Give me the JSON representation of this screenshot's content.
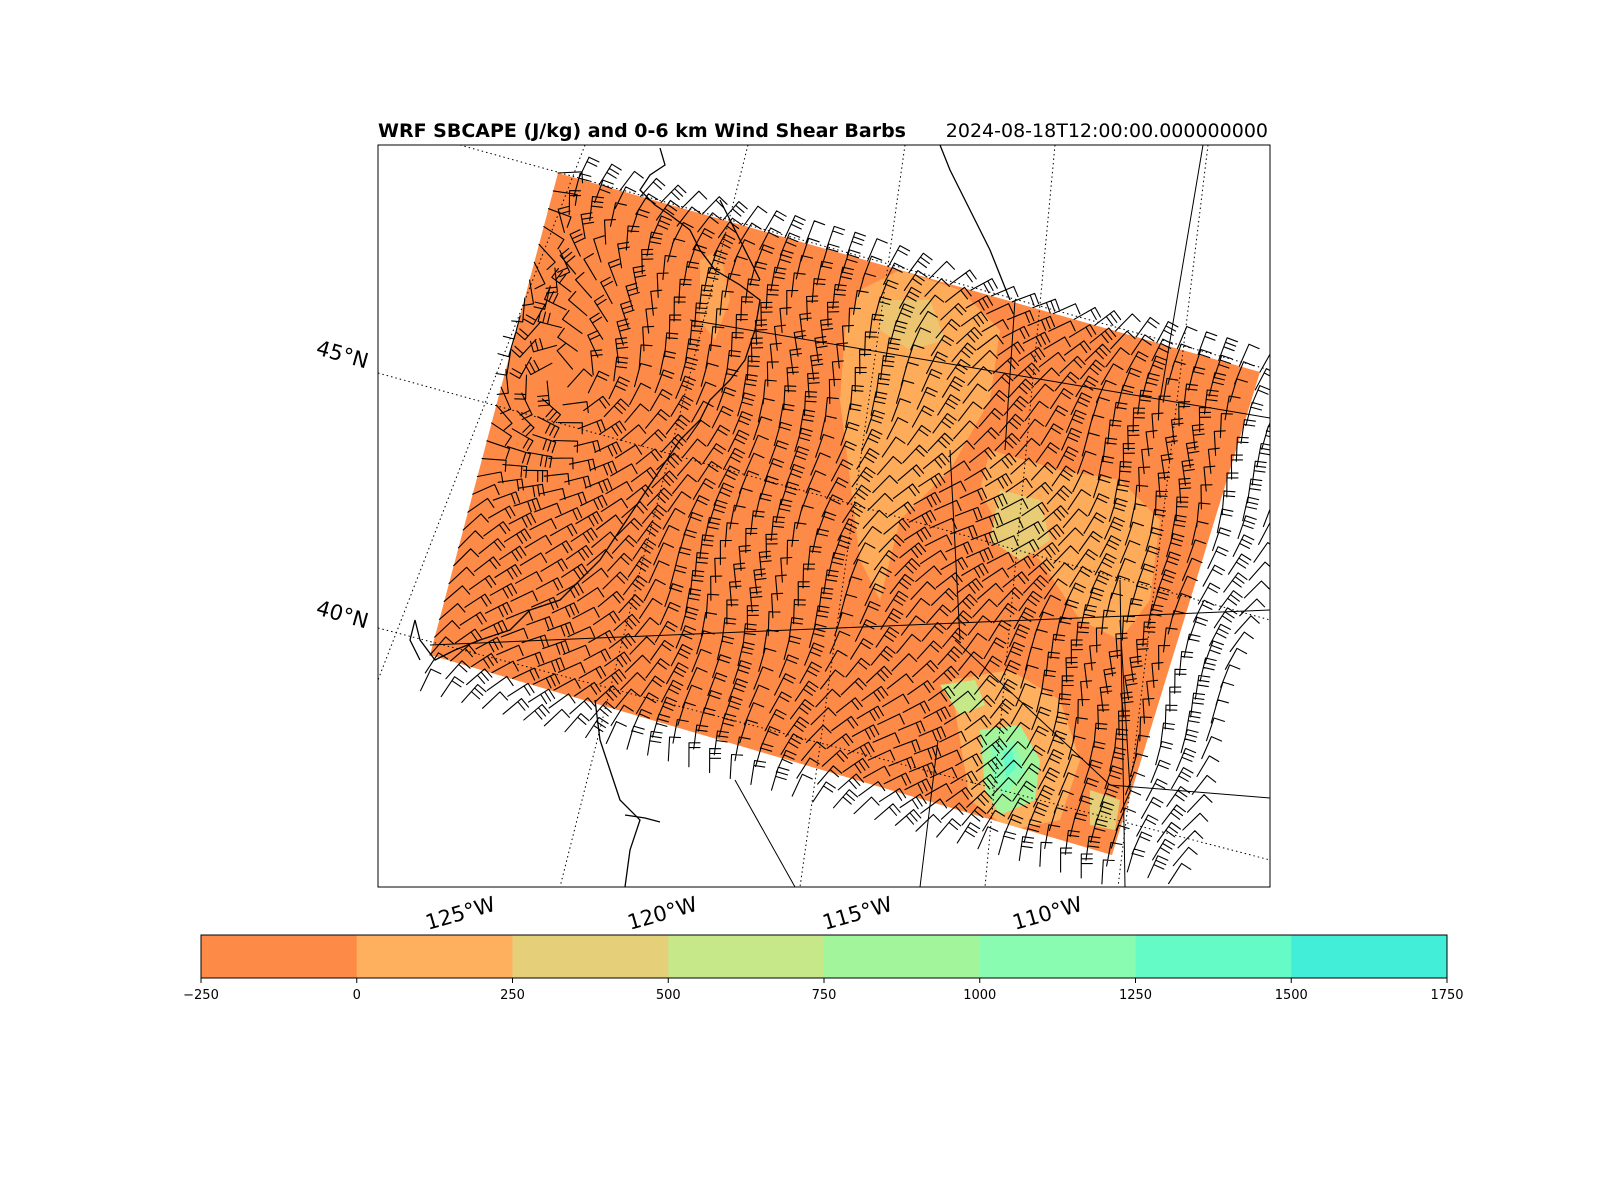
{
  "title": "WRF SBCAPE (J/kg) and 0-6 km Wind Shear Barbs",
  "valid_time": "2024-08-18T12:00:00.000000000",
  "map": {
    "lat_labels": [
      "45°N",
      "40°N"
    ],
    "lon_labels": [
      "125°W",
      "120°W",
      "115°W",
      "110°W"
    ],
    "field_color": "#fe8a47"
  },
  "colorbar": {
    "ticks": [
      "−250",
      "0",
      "250",
      "500",
      "750",
      "1000",
      "1250",
      "1500",
      "1750"
    ],
    "bins": [
      {
        "range": "−250 to 0",
        "color": "#fe8a47"
      },
      {
        "range": "0 to 250",
        "color": "#feb05e"
      },
      {
        "range": "250 to 500",
        "color": "#e5cf79"
      },
      {
        "range": "500 to 750",
        "color": "#c7e889"
      },
      {
        "range": "750 to 1000",
        "color": "#a3f59c"
      },
      {
        "range": "1000 to 1250",
        "color": "#8afcb1"
      },
      {
        "range": "1250 to 1500",
        "color": "#65fbc7"
      },
      {
        "range": "1500 to 1750",
        "color": "#43eed8"
      }
    ]
  },
  "chart_data": {
    "type": "heatmap",
    "title": "WRF SBCAPE (J/kg) and 0-6 km Wind Shear Barbs",
    "valid_time": "2024-08-18T12:00:00.000000000",
    "colorbar_range": [
      -250,
      1750
    ],
    "colorbar_step": 250,
    "dominant_value_range": [
      -250,
      0
    ],
    "notable_regions": [
      {
        "area": "southeast corner (southern Utah)",
        "value_range": [
          1000,
          1500
        ]
      },
      {
        "area": "eastern Idaho / western Wyoming",
        "value_range": [
          250,
          750
        ]
      }
    ]
  }
}
